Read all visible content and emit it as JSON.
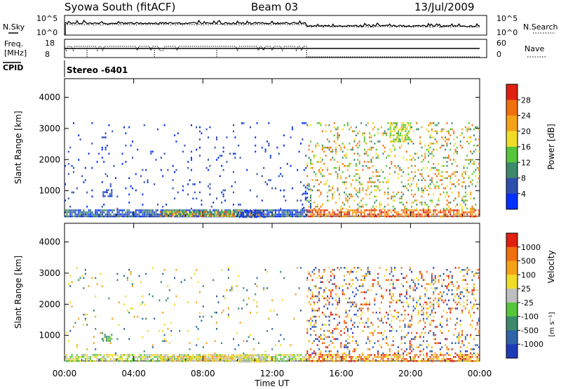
{
  "header": {
    "title": "Syowa South (fitACF)",
    "beam": "Beam 03",
    "date": "13/Jul/2009",
    "stereo": "Stereo -6401"
  },
  "top_panels": {
    "nsky_label": "N.Sky",
    "nsearch_label": "N.Search",
    "freq_label_1": "Freq.",
    "freq_label_2": "[MHz]",
    "nave_label": "Nave",
    "cpid_label": "CPID",
    "noise_left_ticks": [
      "10^5",
      "10^0"
    ],
    "noise_right_ticks": [
      "10^5",
      "10^0"
    ],
    "freq_left_ticks": [
      "18",
      "8"
    ],
    "nave_right_ticks": [
      "60",
      "0"
    ]
  },
  "chart_data": [
    {
      "type": "heatmap",
      "panel": "power",
      "ylabel": "Slant Range [km]",
      "ylim": [
        180,
        4600
      ],
      "yticks": [
        "1000",
        "2000",
        "3000",
        "4000"
      ],
      "xlim": [
        0,
        24
      ],
      "colorbar_label": "Power [dB]",
      "colorbar_ticks": [
        "4",
        "8",
        "12",
        "16",
        "20",
        "24",
        "28"
      ],
      "colorbar_colors": [
        "#0030ff",
        "#2f4fae",
        "#3c8a6a",
        "#55c63a",
        "#f0dc28",
        "#f5a218",
        "#f07010",
        "#e02010"
      ],
      "regions": [
        {
          "t0": 0,
          "t1": 14,
          "r0": 180,
          "r1": 400,
          "density": 0.85,
          "levels": [
            0,
            1,
            2
          ]
        },
        {
          "t0": 5.5,
          "t1": 9.8,
          "r0": 180,
          "r1": 350,
          "density": 0.9,
          "levels": [
            2,
            3,
            4,
            6
          ]
        },
        {
          "t0": 10,
          "t1": 11.6,
          "r0": 180,
          "r1": 380,
          "density": 0.85,
          "levels": [
            0,
            1,
            5
          ]
        },
        {
          "t0": 2.2,
          "t1": 2.7,
          "r0": 800,
          "r1": 1050,
          "density": 0.7,
          "levels": [
            0,
            1
          ]
        },
        {
          "t0": 0,
          "t1": 14,
          "r0": 400,
          "r1": 3200,
          "density": 0.035,
          "levels": [
            0,
            1
          ]
        },
        {
          "t0": 13.8,
          "t1": 14.2,
          "r0": 300,
          "r1": 1200,
          "density": 0.35,
          "levels": [
            0,
            1
          ]
        },
        {
          "t0": 14,
          "t1": 24,
          "r0": 180,
          "r1": 400,
          "density": 0.7,
          "levels": [
            5,
            6,
            7
          ]
        },
        {
          "t0": 14,
          "t1": 24,
          "r0": 400,
          "r1": 3200,
          "density": 0.18,
          "levels": [
            2,
            3,
            4,
            5,
            6
          ]
        },
        {
          "t0": 18.8,
          "t1": 20,
          "r0": 2600,
          "r1": 3200,
          "density": 0.5,
          "levels": [
            4,
            3
          ]
        }
      ]
    },
    {
      "type": "heatmap",
      "panel": "velocity",
      "ylabel": "Slant Range [km]",
      "ylim": [
        180,
        4600
      ],
      "yticks": [
        "1000",
        "2000",
        "3000",
        "4000"
      ],
      "xlim": [
        0,
        24
      ],
      "xticks": [
        "00:00",
        "04:00",
        "08:00",
        "12:00",
        "16:00",
        "20:00",
        "00:00"
      ],
      "xlabel": "Time UT",
      "colorbar_label": "Velocity",
      "colorbar_ticks": [
        "1000",
        "500",
        "100",
        "25",
        "-25",
        "-100",
        "-500",
        "-1000"
      ],
      "colorbar_colors": [
        "#1f3cb8",
        "#2f64a8",
        "#3c8a6a",
        "#55c63a",
        "#bfbfbf",
        "#f0dc28",
        "#f5a218",
        "#f07010",
        "#e02010"
      ],
      "regions": [
        {
          "t0": 0,
          "t1": 14,
          "r0": 180,
          "r1": 400,
          "density": 0.75,
          "levels": [
            4,
            5,
            3
          ]
        },
        {
          "t0": 5.5,
          "t1": 9.8,
          "r0": 180,
          "r1": 350,
          "density": 0.85,
          "levels": [
            5,
            6,
            4
          ]
        },
        {
          "t0": 10,
          "t1": 11.6,
          "r0": 180,
          "r1": 380,
          "density": 0.85,
          "levels": [
            4,
            5
          ]
        },
        {
          "t0": 2.2,
          "t1": 2.7,
          "r0": 800,
          "r1": 1050,
          "density": 0.7,
          "levels": [
            2,
            3
          ]
        },
        {
          "t0": 0,
          "t1": 14,
          "r0": 400,
          "r1": 3200,
          "density": 0.03,
          "levels": [
            1,
            2,
            5,
            6
          ]
        },
        {
          "t0": 14,
          "t1": 24,
          "r0": 180,
          "r1": 400,
          "density": 0.65,
          "levels": [
            5,
            6,
            7,
            8
          ]
        },
        {
          "t0": 14,
          "t1": 24,
          "r0": 400,
          "r1": 3200,
          "density": 0.2,
          "levels": [
            0,
            1,
            5,
            6,
            7,
            8
          ]
        }
      ]
    }
  ]
}
